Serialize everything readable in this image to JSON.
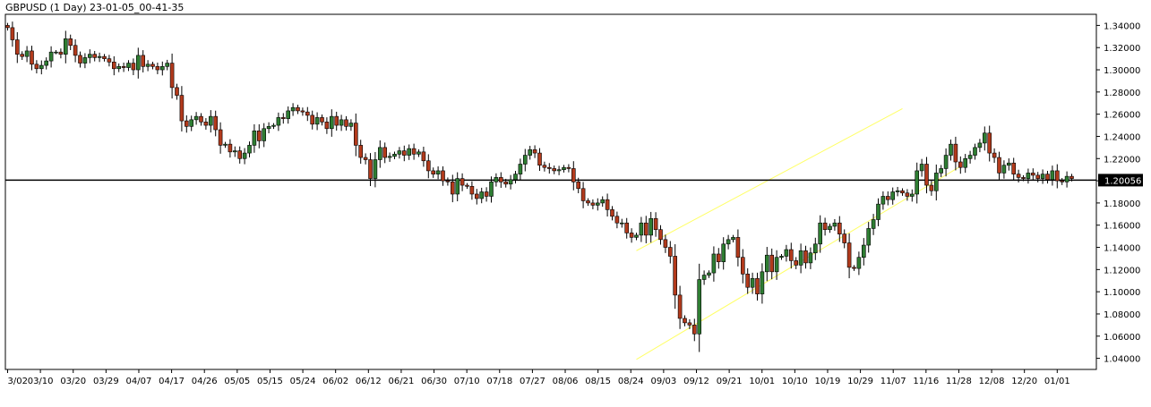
{
  "chart_data": {
    "type": "candlestick",
    "title": "GBPUSD (1 Day) 23-01-05_00-41-35",
    "symbol": "GBPUSD",
    "timeframe": "1 Day",
    "colors": {
      "background": "#ffffff",
      "bull": "#2e7d32",
      "bear": "#b23a1c",
      "wick": "#000000",
      "axis": "#000000",
      "hline": "#000000",
      "channel": "#ffff66",
      "price_box": "#000000"
    },
    "ylim": [
      1.03,
      1.35
    ],
    "y_ticks": [
      "1.34000",
      "1.32000",
      "1.30000",
      "1.28000",
      "1.26000",
      "1.24000",
      "1.22000",
      "1.20000",
      "1.18000",
      "1.16000",
      "1.14000",
      "1.12000",
      "1.10000",
      "1.08000",
      "1.06000",
      "1.04000"
    ],
    "x_ticks": [
      "3/02",
      "03/10",
      "03/20",
      "03/29",
      "04/07",
      "04/17",
      "04/26",
      "05/05",
      "05/15",
      "05/24",
      "06/02",
      "06/12",
      "06/21",
      "06/30",
      "07/10",
      "07/18",
      "07/27",
      "08/06",
      "08/15",
      "08/24",
      "09/03",
      "09/12",
      "09/21",
      "10/01",
      "10/10",
      "10/19",
      "10/29",
      "11/07",
      "11/16",
      "11/28",
      "12/08",
      "12/20",
      "01/01"
    ],
    "current_price": "1.20056",
    "horizontal_line": 1.20056,
    "channel": {
      "upper": {
        "start": [
          130,
          1.137
        ],
        "end": [
          185,
          1.265
        ]
      },
      "lower": {
        "start": [
          130,
          1.039
        ],
        "end": [
          197,
          1.213
        ]
      }
    },
    "close": [
      1.338,
      1.327,
      1.314,
      1.312,
      1.317,
      1.305,
      1.301,
      1.304,
      1.308,
      1.316,
      1.316,
      1.314,
      1.328,
      1.322,
      1.313,
      1.306,
      1.311,
      1.314,
      1.311,
      1.312,
      1.31,
      1.307,
      1.301,
      1.303,
      1.302,
      1.306,
      1.3,
      1.313,
      1.303,
      1.305,
      1.303,
      1.3,
      1.303,
      1.306,
      1.284,
      1.277,
      1.254,
      1.249,
      1.255,
      1.258,
      1.253,
      1.25,
      1.258,
      1.246,
      1.232,
      1.233,
      1.226,
      1.227,
      1.22,
      1.225,
      1.232,
      1.245,
      1.236,
      1.247,
      1.249,
      1.25,
      1.257,
      1.256,
      1.263,
      1.266,
      1.263,
      1.262,
      1.259,
      1.251,
      1.257,
      1.253,
      1.247,
      1.258,
      1.25,
      1.255,
      1.249,
      1.252,
      1.232,
      1.221,
      1.219,
      1.202,
      1.219,
      1.23,
      1.221,
      1.222,
      1.224,
      1.227,
      1.223,
      1.229,
      1.224,
      1.226,
      1.218,
      1.209,
      1.206,
      1.209,
      1.2,
      1.199,
      1.188,
      1.202,
      1.196,
      1.195,
      1.188,
      1.184,
      1.19,
      1.186,
      1.199,
      1.203,
      1.199,
      1.197,
      1.201,
      1.206,
      1.215,
      1.223,
      1.228,
      1.225,
      1.214,
      1.212,
      1.211,
      1.209,
      1.21,
      1.212,
      1.211,
      1.199,
      1.193,
      1.182,
      1.18,
      1.178,
      1.18,
      1.183,
      1.174,
      1.168,
      1.162,
      1.162,
      1.153,
      1.149,
      1.151,
      1.162,
      1.151,
      1.166,
      1.156,
      1.147,
      1.14,
      1.132,
      1.097,
      1.076,
      1.072,
      1.07,
      1.062,
      1.111,
      1.115,
      1.117,
      1.134,
      1.127,
      1.143,
      1.147,
      1.149,
      1.131,
      1.116,
      1.104,
      1.112,
      1.098,
      1.118,
      1.133,
      1.118,
      1.131,
      1.132,
      1.138,
      1.128,
      1.124,
      1.137,
      1.126,
      1.135,
      1.143,
      1.162,
      1.156,
      1.159,
      1.162,
      1.152,
      1.144,
      1.122,
      1.121,
      1.131,
      1.142,
      1.157,
      1.165,
      1.179,
      1.186,
      1.183,
      1.19,
      1.191,
      1.189,
      1.186,
      1.188,
      1.209,
      1.215,
      1.196,
      1.191,
      1.207,
      1.211,
      1.223,
      1.233,
      1.217,
      1.212,
      1.22,
      1.223,
      1.23,
      1.234,
      1.243,
      1.225,
      1.221,
      1.207,
      1.214,
      1.216,
      1.206,
      1.203,
      1.202,
      1.207,
      1.205,
      1.202,
      1.206,
      1.201,
      1.209,
      1.2,
      1.199,
      1.204,
      1.202
    ]
  }
}
